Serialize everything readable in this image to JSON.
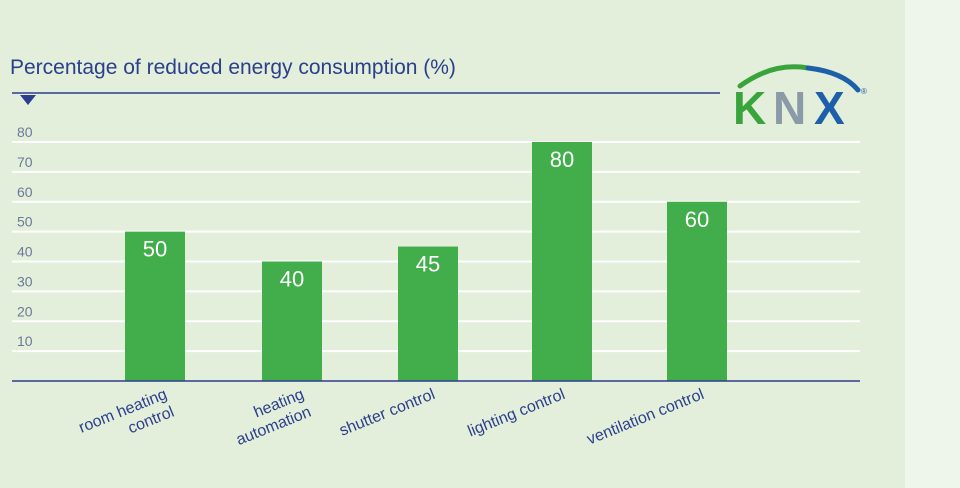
{
  "chart_data": {
    "type": "bar",
    "title": "Percentage of reduced energy consumption (%)",
    "categories": [
      [
        "room heating",
        "control"
      ],
      [
        "heating",
        "automation"
      ],
      [
        "shutter control"
      ],
      [
        "lighting control"
      ],
      [
        "ventilation control"
      ]
    ],
    "values": [
      50,
      40,
      45,
      80,
      60
    ],
    "data_labels": [
      "50",
      "40",
      "45",
      "80",
      "60"
    ],
    "ylim": [
      0,
      80
    ],
    "yticks": [
      "10",
      "20",
      "30",
      "40",
      "50",
      "60",
      "70",
      "80"
    ],
    "grid": true,
    "colors": {
      "bar": "#42ad4b",
      "axis": "#2c3f8c",
      "tick_text": "#6a7a9a",
      "category_text": "#2c3f8c",
      "gridline": "#ffffff"
    }
  },
  "logo": {
    "text": "KNX",
    "registered": "®",
    "colors": {
      "k": "#3aa43c",
      "n": "#8a9aa6",
      "x": "#1d5fa8",
      "arc_green": "#3aa43c",
      "arc_blue": "#1d5fa8"
    }
  }
}
